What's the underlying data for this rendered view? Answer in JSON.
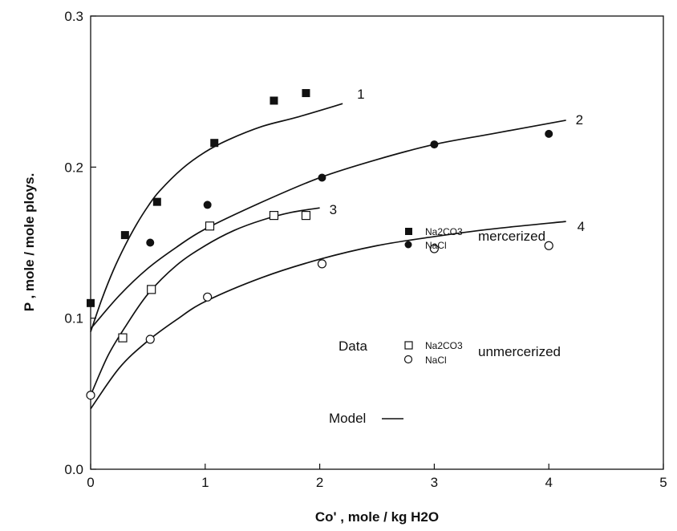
{
  "chart_data": {
    "type": "scatter",
    "xlabel": "Co' , mole / kg H2O",
    "ylabel": "P   , mole / mole ploys.",
    "xlim": [
      0,
      5
    ],
    "ylim": [
      0.0,
      0.3
    ],
    "xticks": [
      "0",
      "1",
      "2",
      "3",
      "4",
      "5"
    ],
    "yticks": [
      "0.0",
      "0.1",
      "0.2",
      "0.3"
    ],
    "grid": false,
    "series": [
      {
        "label": "Na2CO3",
        "marker": "filled-square",
        "x": [
          0.0,
          0.3,
          0.58,
          1.08,
          1.6,
          1.88
        ],
        "y": [
          0.11,
          0.155,
          0.177,
          0.216,
          0.244,
          0.249
        ]
      },
      {
        "label": "NaCl",
        "marker": "filled-circle",
        "x": [
          0.52,
          1.02,
          2.02,
          3.0,
          4.0
        ],
        "y": [
          0.15,
          0.175,
          0.193,
          0.215,
          0.222
        ]
      },
      {
        "label": "Na2CO3",
        "marker": "open-square",
        "x": [
          0.28,
          0.53,
          1.04,
          1.6,
          1.88
        ],
        "y": [
          0.087,
          0.119,
          0.161,
          0.168,
          0.168
        ]
      },
      {
        "label": "NaCl",
        "marker": "open-circle",
        "x": [
          0.0,
          0.52,
          1.02,
          2.02,
          3.0,
          4.0
        ],
        "y": [
          0.049,
          0.086,
          0.114,
          0.136,
          0.146,
          0.148
        ]
      }
    ],
    "model_curves": [
      {
        "label": "1",
        "x": [
          0.0,
          0.1,
          0.2,
          0.3,
          0.4,
          0.5,
          0.6,
          0.8,
          1.0,
          1.2,
          1.5,
          1.8,
          2.2
        ],
        "y": [
          0.091,
          0.113,
          0.132,
          0.148,
          0.162,
          0.174,
          0.184,
          0.199,
          0.21,
          0.218,
          0.227,
          0.233,
          0.242
        ]
      },
      {
        "label": "2",
        "x": [
          0.0,
          0.25,
          0.5,
          0.75,
          1.0,
          1.5,
          2.0,
          2.5,
          3.0,
          3.5,
          4.15
        ],
        "y": [
          0.093,
          0.115,
          0.133,
          0.147,
          0.159,
          0.177,
          0.193,
          0.205,
          0.215,
          0.222,
          0.231
        ]
      },
      {
        "label": "3",
        "x": [
          0.0,
          0.15,
          0.3,
          0.5,
          0.75,
          1.0,
          1.25,
          1.5,
          1.75,
          2.0
        ],
        "y": [
          0.049,
          0.075,
          0.094,
          0.116,
          0.135,
          0.148,
          0.158,
          0.165,
          0.17,
          0.173
        ]
      },
      {
        "label": "4",
        "x": [
          0.0,
          0.25,
          0.5,
          0.75,
          1.0,
          1.5,
          2.0,
          2.5,
          3.0,
          3.5,
          4.15
        ],
        "y": [
          0.04,
          0.067,
          0.085,
          0.099,
          0.111,
          0.127,
          0.139,
          0.148,
          0.154,
          0.159,
          0.164
        ]
      }
    ],
    "legend": {
      "data_label": "Data",
      "entries": [
        {
          "marker": "filled-square",
          "text": "Na2CO3"
        },
        {
          "marker": "filled-circle",
          "text": "NaCl"
        },
        {
          "marker": "open-square",
          "text": "Na2CO3"
        },
        {
          "marker": "open-circle",
          "text": "NaCl"
        }
      ],
      "group_labels": [
        "mercerized",
        "unmercerized"
      ],
      "model_label": "Model"
    }
  }
}
